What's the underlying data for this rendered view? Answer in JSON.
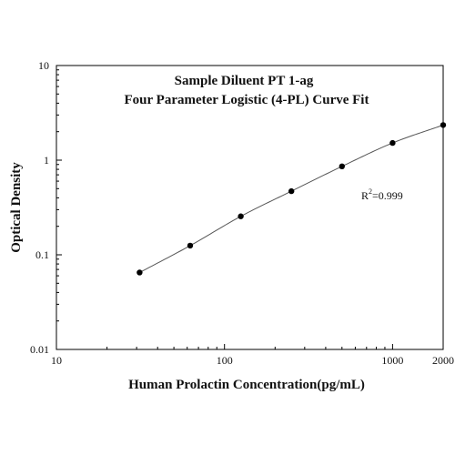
{
  "chart_data": {
    "type": "scatter",
    "title_line1": "Sample Diluent PT 1-ag",
    "title_line2": "Four Parameter Logistic (4-PL) Curve Fit",
    "xlabel": "Human Prolactin Concentration(pg/mL)",
    "ylabel": "Optical Density",
    "x_scale": "log",
    "y_scale": "log",
    "xlim": [
      10,
      2000
    ],
    "ylim": [
      0.01,
      10
    ],
    "x_ticks": [
      {
        "value": 10,
        "label": "10"
      },
      {
        "value": 100,
        "label": "100"
      },
      {
        "value": 1000,
        "label": "1000"
      },
      {
        "value": 2000,
        "label": "2000"
      }
    ],
    "y_ticks": [
      {
        "value": 0.01,
        "label": "0.01"
      },
      {
        "value": 0.1,
        "label": "0.1"
      },
      {
        "value": 1,
        "label": "1"
      },
      {
        "value": 10,
        "label": "10"
      }
    ],
    "grid": false,
    "annotation": {
      "prefix": "R",
      "superscript": "2",
      "suffix": "=0.999"
    },
    "points": [
      {
        "x": 31.25,
        "y": 0.065
      },
      {
        "x": 62.5,
        "y": 0.125
      },
      {
        "x": 125,
        "y": 0.255
      },
      {
        "x": 250,
        "y": 0.47
      },
      {
        "x": 500,
        "y": 0.86
      },
      {
        "x": 1000,
        "y": 1.52
      },
      {
        "x": 2000,
        "y": 2.35
      }
    ],
    "fit_curve": {
      "model": "4-PL",
      "color": "#555555"
    },
    "point_color": "#000000"
  }
}
